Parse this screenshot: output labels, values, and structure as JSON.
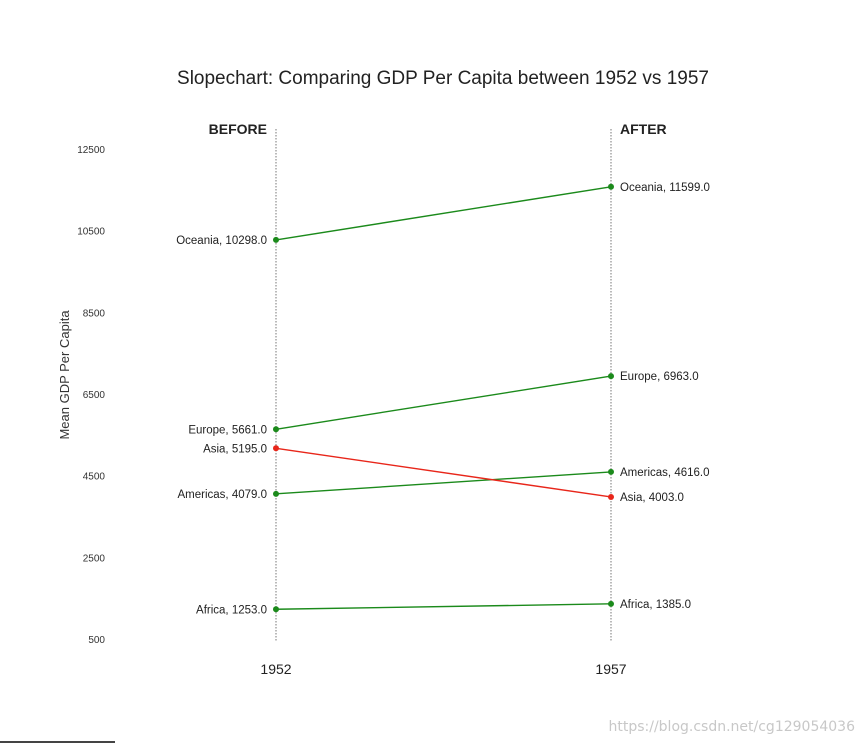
{
  "chart_data": {
    "type": "line",
    "title": "Slopechart: Comparing GDP Per Capita between 1952 vs 1957",
    "ylabel": "Mean GDP Per Capita",
    "xlabel": "",
    "x": [
      "1952",
      "1957"
    ],
    "left_heading": "BEFORE",
    "right_heading": "AFTER",
    "ylim": [
      500,
      12500
    ],
    "yticks": [
      "500",
      "2500",
      "4500",
      "6500",
      "8500",
      "10500",
      "12500"
    ],
    "grid": false,
    "up_color": "#1b8a1b",
    "down_color": "#e8261a",
    "series": [
      {
        "name": "Africa",
        "values": [
          1253,
          1385
        ],
        "labels": [
          "Africa, 1253.0",
          "Africa, 1385.0"
        ]
      },
      {
        "name": "Americas",
        "values": [
          4079,
          4616
        ],
        "labels": [
          "Americas, 4079.0",
          "Americas, 4616.0"
        ]
      },
      {
        "name": "Asia",
        "values": [
          5195,
          4003
        ],
        "labels": [
          "Asia, 5195.0",
          "Asia, 4003.0"
        ]
      },
      {
        "name": "Europe",
        "values": [
          5661,
          6963
        ],
        "labels": [
          "Europe, 5661.0",
          "Europe, 6963.0"
        ]
      },
      {
        "name": "Oceania",
        "values": [
          10298,
          11599
        ],
        "labels": [
          "Oceania, 10298.0",
          "Oceania, 11599.0"
        ]
      }
    ]
  },
  "watermark": "https://blog.csdn.net/cg129054036"
}
